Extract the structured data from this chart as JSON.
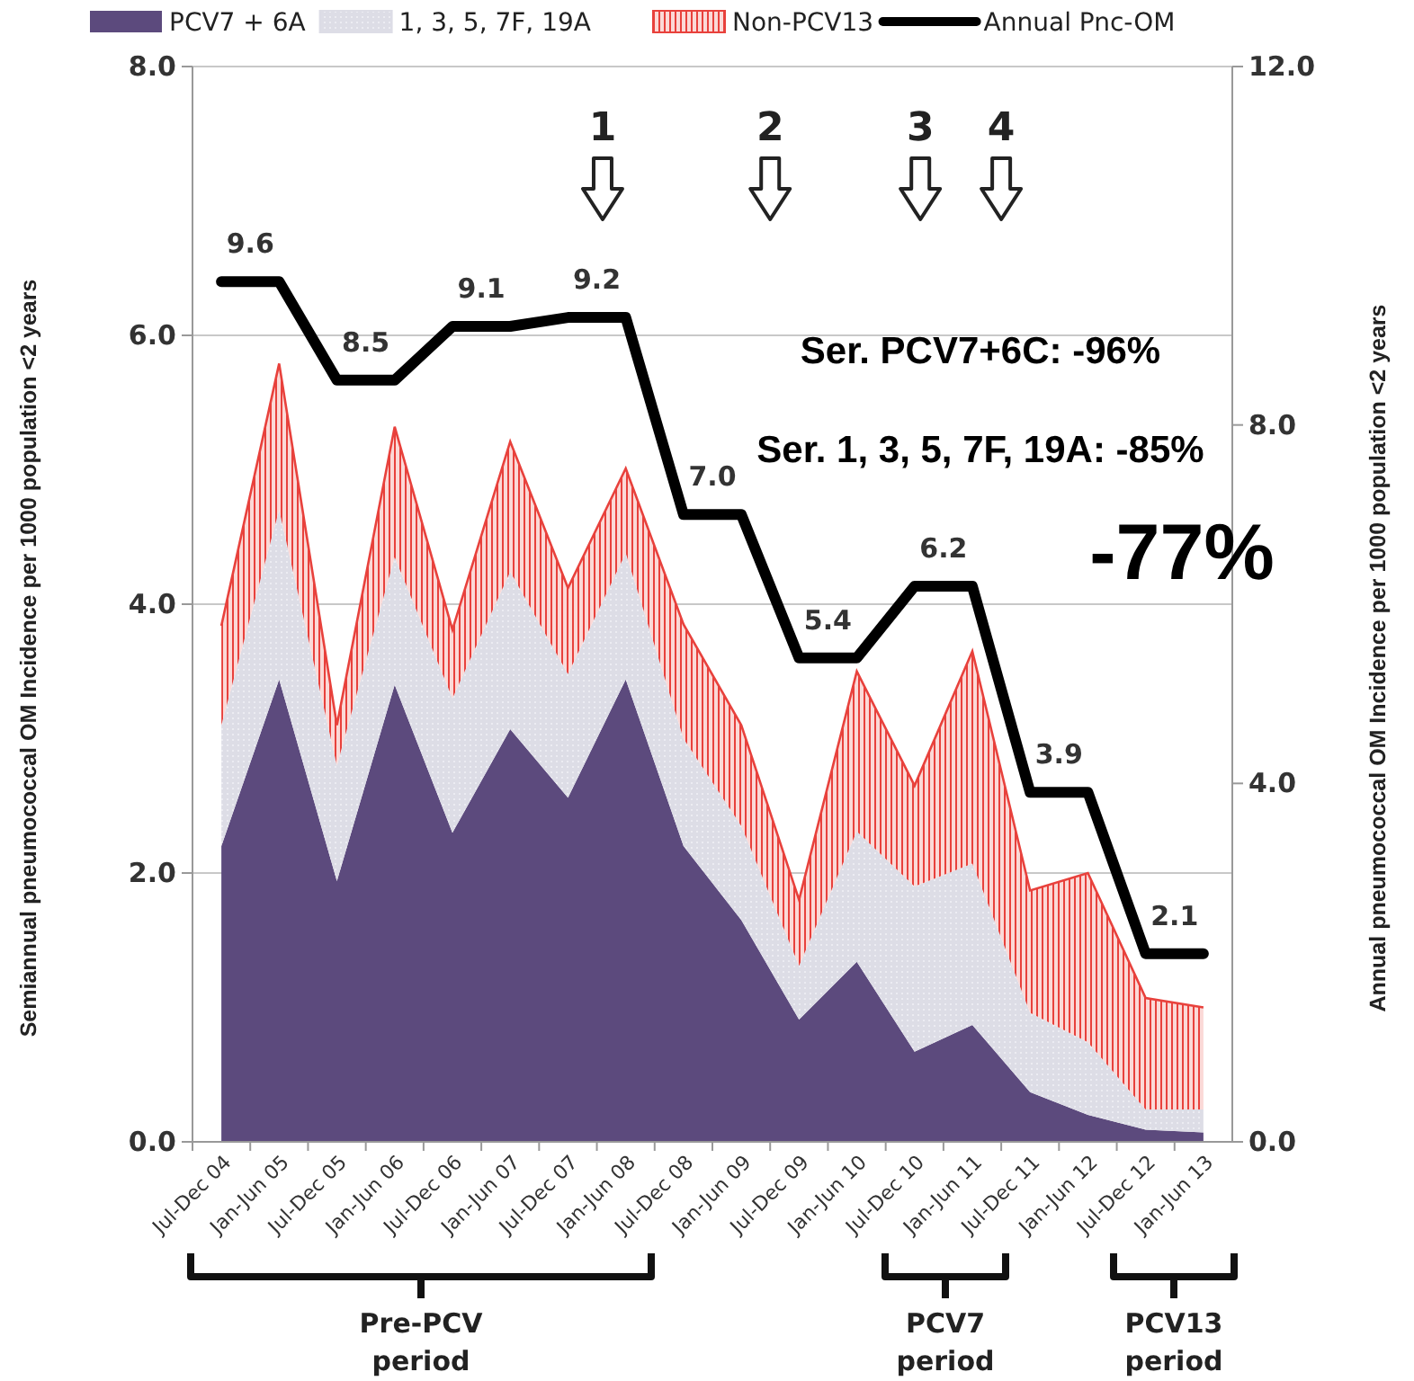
{
  "chart_data": {
    "type": "area",
    "stacked": true,
    "legend": "top",
    "grid": "y",
    "marker": "none",
    "ylabel": "Semiannual pneumococcal OM Incidence  per 1000 population <2 years",
    "y2label": "Annual pneumococcal OM Incidence  per 1000 population <2 years",
    "categories": [
      "Jul-Dec 04",
      "Jan-Jun 05",
      "Jul-Dec 05",
      "Jan-Jun 06",
      "Jul-Dec 06",
      "Jan-Jun 07",
      "Jul-Dec 07",
      "Jan-Jun 08",
      "Jul-Dec 08",
      "Jan-Jun 09",
      "Jul-Dec 09",
      "Jan-Jun 10",
      "Jul-Dec 10",
      "Jan-Jun 11",
      "Jul-Dec 11",
      "Jan-Jun 12",
      "Jul-Dec 12",
      "Jan-Jun 13"
    ],
    "ylim": [
      0,
      8
    ],
    "yticks": [
      {
        "value": 0,
        "label": "0.0"
      },
      {
        "value": 2,
        "label": "2.0"
      },
      {
        "value": 4,
        "label": "4.0"
      },
      {
        "value": 6,
        "label": "6.0"
      },
      {
        "value": 8,
        "label": "8.0"
      }
    ],
    "y2lim": [
      0,
      12
    ],
    "y2ticks": [
      {
        "value": 0,
        "label": "0.0"
      },
      {
        "value": 4,
        "label": "4.0"
      },
      {
        "value": 8,
        "label": "8.0"
      },
      {
        "value": 12,
        "label": "12.0"
      }
    ],
    "series": [
      {
        "name": "PCV7 + 6A",
        "color": "#5c4a7d",
        "values": [
          2.2,
          3.44,
          1.94,
          3.4,
          2.3,
          3.07,
          2.56,
          3.44,
          2.2,
          1.65,
          0.91,
          1.34,
          0.67,
          0.87,
          0.37,
          0.2,
          0.09,
          0.07
        ]
      },
      {
        "name": "1, 3, 5, 7F, 19A",
        "color": "#dddde6",
        "values": [
          0.9,
          1.26,
          0.86,
          0.95,
          1.0,
          1.17,
          0.92,
          0.94,
          0.8,
          0.7,
          0.4,
          0.97,
          1.23,
          1.2,
          0.59,
          0.54,
          0.15,
          0.17
        ]
      },
      {
        "name": "Non-PCV13",
        "color": "#e8413c",
        "values": [
          0.74,
          1.09,
          0.3,
          0.97,
          0.51,
          0.97,
          0.64,
          0.63,
          0.85,
          0.75,
          0.49,
          1.19,
          0.75,
          1.58,
          0.91,
          1.26,
          0.83,
          0.76
        ]
      },
      {
        "name": "Annual Pnc-OM",
        "type": "line",
        "axis": "y2",
        "color": "#000000",
        "line_style": "solid",
        "values": [
          9.6,
          9.6,
          8.5,
          8.5,
          9.1,
          9.1,
          9.2,
          9.2,
          7.0,
          7.0,
          5.4,
          5.4,
          6.2,
          6.2,
          3.9,
          3.9,
          2.1,
          2.1
        ],
        "value_labels": [
          "9.6",
          null,
          "8.5",
          null,
          "9.1",
          null,
          "9.2",
          null,
          "7.0",
          null,
          "5.4",
          null,
          "6.2",
          null,
          "3.9",
          null,
          "2.1",
          null
        ]
      }
    ],
    "annotations": [
      "1",
      "2",
      "3",
      "4",
      "Ser. PCV7+6C: -96%",
      "Ser. 1, 3, 5, 7F, 19A:  -85%",
      "-77%",
      "Pre-PCV period",
      "PCV7 period",
      "PCV13 period"
    ]
  }
}
